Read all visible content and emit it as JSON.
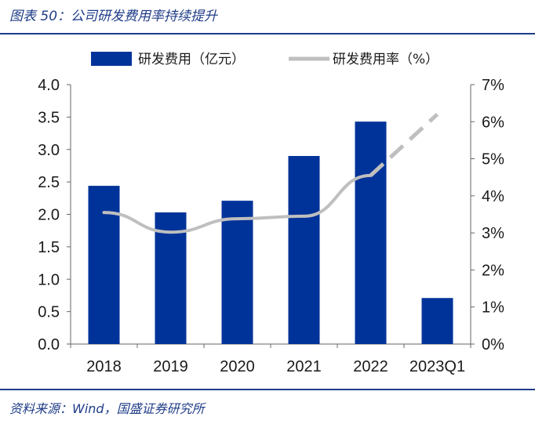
{
  "header": {
    "title": "图表 50：公司研发费用率持续提升"
  },
  "footer": {
    "source": "资料来源：Wind，国盛证券研究所"
  },
  "colors": {
    "bar": "#003399",
    "line": "#bfbfbf",
    "accent": "#1f3c88"
  },
  "chart_data": {
    "type": "bar",
    "categories": [
      "2018",
      "2019",
      "2020",
      "2021",
      "2022",
      "2023Q1"
    ],
    "series": [
      {
        "name": "研发费用（亿元）",
        "type": "bar",
        "axis": "left",
        "values": [
          2.44,
          2.03,
          2.21,
          2.9,
          3.43,
          0.71
        ]
      },
      {
        "name": "研发费用率（%）",
        "type": "line",
        "axis": "right",
        "values": [
          3.55,
          3.02,
          3.38,
          3.45,
          4.55,
          6.2
        ],
        "dashed_last_segment": true
      }
    ],
    "y_left": {
      "ylim": [
        0,
        4.0
      ],
      "ticks": [
        "0.0",
        "0.5",
        "1.0",
        "1.5",
        "2.0",
        "2.5",
        "3.0",
        "3.5",
        "4.0"
      ]
    },
    "y_right": {
      "ylim": [
        0,
        7
      ],
      "ticks": [
        "0%",
        "1%",
        "2%",
        "3%",
        "4%",
        "5%",
        "6%",
        "7%"
      ]
    },
    "legend": {
      "placement": "top-center"
    },
    "grid": false
  }
}
